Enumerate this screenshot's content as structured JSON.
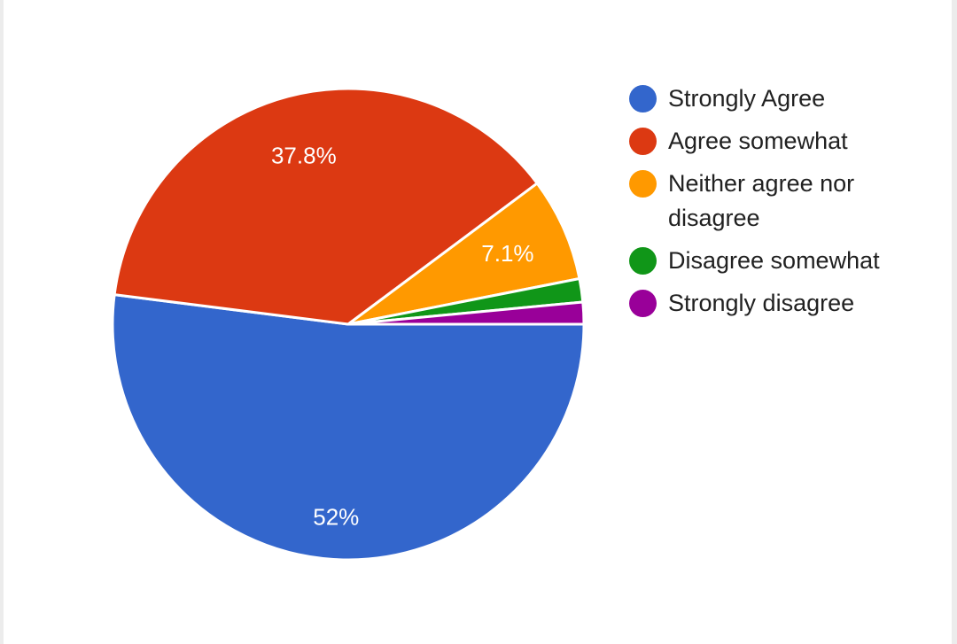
{
  "chart_data": {
    "type": "pie",
    "legend_position": "right",
    "slices": [
      {
        "label": "Strongly Agree",
        "value": 52,
        "value_label": "52%",
        "color": "#3366cc"
      },
      {
        "label": "Agree somewhat",
        "value": 37.8,
        "value_label": "37.8%",
        "color": "#dc3912"
      },
      {
        "label": "Neither agree nor disagree",
        "value": 7.1,
        "value_label": "7.1%",
        "color": "#ff9900"
      },
      {
        "label": "Disagree somewhat",
        "value": 1.6,
        "value_label": "",
        "color": "#109618"
      },
      {
        "label": "Strongly disagree",
        "value": 1.5,
        "value_label": "",
        "color": "#990099"
      }
    ]
  }
}
